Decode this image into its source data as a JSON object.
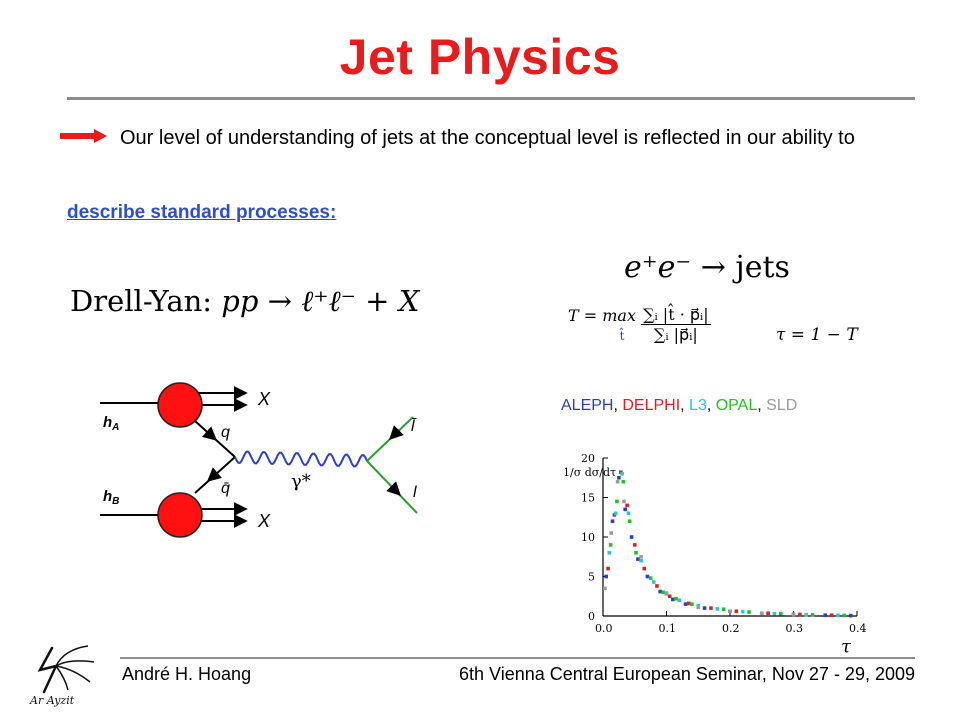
{
  "title": "Jet Physics",
  "intro": "Our level of understanding of jets at the conceptual level is reflected in our ability to",
  "subheading": "describe standard processes:",
  "drell_yan": {
    "label": "Drell-Yan:",
    "lhs": "pp",
    "arrow": "→",
    "rhs": "ℓ⁺ℓ⁻ + X"
  },
  "ee_jets": {
    "lhs": "e⁺e⁻",
    "arrow": "→",
    "rhs": "jets"
  },
  "thrust": {
    "lhs": "T = max",
    "sub": "t̂",
    "numerator": "∑ᵢ |t̂ · p⃗ᵢ|",
    "denominator": "∑ᵢ |p⃗ᵢ|",
    "tau_def": "τ = 1 − T"
  },
  "experiments": [
    {
      "name": "ALEPH",
      "color": "#2a3fc4"
    },
    {
      "name": "DELPHI",
      "color": "#e02020"
    },
    {
      "name": "L3",
      "color": "#2fc2e0"
    },
    {
      "name": "OPAL",
      "color": "#22c122"
    },
    {
      "name": "SLD",
      "color": "#9a9a9a"
    }
  ],
  "feynman": {
    "h_a": "h",
    "h_a_sub": "A",
    "h_b": "h",
    "h_b_sub": "B",
    "x_top": "X",
    "x_bottom": "X",
    "q": "q",
    "qbar": "q̄",
    "photon": "γ*",
    "lbar": "l̄",
    "l": "l",
    "blob_color": "#ff1111",
    "lepton_color": "#2aa02a",
    "photon_color": "#2a3fd0"
  },
  "chart_data": {
    "type": "scatter",
    "ylabel": "1/σ dσ/dτ",
    "xlabel": "τ",
    "xlim": [
      0.0,
      0.4
    ],
    "ylim": [
      0,
      20
    ],
    "x_ticks": [
      "0.0",
      "0.1",
      "0.2",
      "0.3",
      "0.4"
    ],
    "y_ticks": [
      "0",
      "5",
      "10",
      "15",
      "20"
    ],
    "series": [
      {
        "name": "ALEPH",
        "color": "#2a3fc4",
        "x": [
          0.005,
          0.015,
          0.025,
          0.035,
          0.045,
          0.055,
          0.07,
          0.09,
          0.11,
          0.13,
          0.16,
          0.2,
          0.25,
          0.3,
          0.35,
          0.39
        ],
        "y": [
          5.0,
          12.0,
          17.5,
          13.5,
          10.0,
          7.2,
          5.0,
          3.1,
          2.1,
          1.5,
          1.0,
          0.6,
          0.35,
          0.2,
          0.1,
          0.05
        ]
      },
      {
        "name": "DELPHI",
        "color": "#e02020",
        "x": [
          0.008,
          0.018,
          0.028,
          0.038,
          0.05,
          0.065,
          0.085,
          0.105,
          0.135,
          0.17,
          0.21,
          0.26,
          0.31,
          0.36
        ],
        "y": [
          6.0,
          12.8,
          18.2,
          14.0,
          9.0,
          6.0,
          3.8,
          2.5,
          1.6,
          1.0,
          0.6,
          0.35,
          0.2,
          0.1
        ]
      },
      {
        "name": "L3",
        "color": "#2fc2e0",
        "x": [
          0.01,
          0.02,
          0.03,
          0.04,
          0.06,
          0.08,
          0.1,
          0.12,
          0.15,
          0.18,
          0.22,
          0.27,
          0.32,
          0.37
        ],
        "y": [
          8.0,
          13.0,
          18.0,
          13.0,
          7.0,
          4.3,
          2.8,
          2.0,
          1.3,
          0.9,
          0.55,
          0.3,
          0.15,
          0.08
        ]
      },
      {
        "name": "OPAL",
        "color": "#22c122",
        "x": [
          0.012,
          0.022,
          0.032,
          0.042,
          0.052,
          0.075,
          0.095,
          0.115,
          0.14,
          0.19,
          0.23,
          0.28,
          0.33,
          0.38
        ],
        "y": [
          9.0,
          14.5,
          17.0,
          12.0,
          8.0,
          4.8,
          3.0,
          2.2,
          1.5,
          0.85,
          0.5,
          0.3,
          0.15,
          0.07
        ]
      },
      {
        "name": "SLD",
        "color": "#9a9a9a",
        "x": [
          0.003,
          0.013,
          0.023,
          0.033,
          0.06,
          0.1,
          0.15,
          0.2,
          0.25,
          0.3
        ],
        "y": [
          3.5,
          10.5,
          17.0,
          14.5,
          7.5,
          2.9,
          1.1,
          0.6,
          0.35,
          0.2
        ]
      }
    ]
  },
  "footer": {
    "author": "André H. Hoang",
    "seminar": "6th Vienna Central European Seminar, Nov 27 - 29, 2009",
    "logo_text": "Ar Ayzit"
  }
}
